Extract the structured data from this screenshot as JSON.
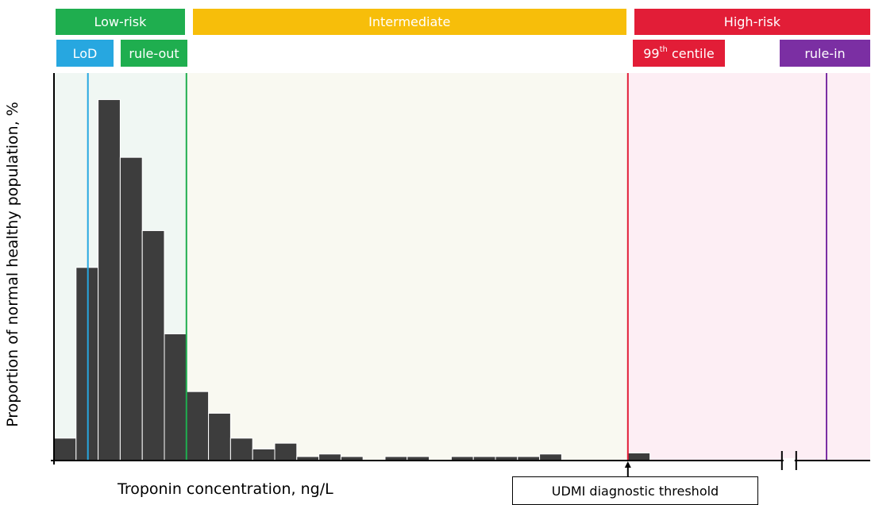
{
  "chart_data": {
    "type": "bar",
    "title": "",
    "xlabel": "Troponin concentration, ng/L",
    "ylabel": "Proportion of normal healthy population, %",
    "grid": false,
    "bin_count": 28,
    "values": [
      6.2,
      53.5,
      100,
      84,
      63.7,
      35.1,
      19.1,
      13.1,
      6.2,
      3.2,
      4.8,
      1.1,
      1.8,
      1.1,
      0,
      1.1,
      1.1,
      0,
      1.1,
      1.1,
      1.1,
      1.1,
      1.8,
      0,
      0,
      0,
      2.1,
      0
    ],
    "ylim": [
      0,
      110
    ],
    "axis_break_after_bin": 31,
    "categories_note": "",
    "bands": [
      {
        "label": "Low-risk",
        "color": "#1fae4f",
        "fill": "#f0f7f3",
        "from_bin": 0,
        "to_bin": 6
      },
      {
        "label": "Intermediate",
        "color": "#f7be0a",
        "fill": "#f9f9f1",
        "from_bin": 6,
        "to_bin": 26
      },
      {
        "label": "High-risk",
        "color": "#e21d37",
        "fill": "#fdeef4",
        "from_bin": 26,
        "to_bin": 37
      }
    ],
    "markers": [
      {
        "label": "LoD",
        "color": "#27a7e0",
        "bin": 1.5
      },
      {
        "label": "rule-out",
        "color": "#1fae4f",
        "bin": 6
      },
      {
        "label_main": "99",
        "label_sup": "th",
        "label_tail": " centile",
        "color": "#e21d37",
        "bin": 26
      },
      {
        "label": "rule-in",
        "color": "#7b2fa3",
        "bin": 35
      }
    ],
    "annotation": "UDMI diagnostic threshold"
  }
}
